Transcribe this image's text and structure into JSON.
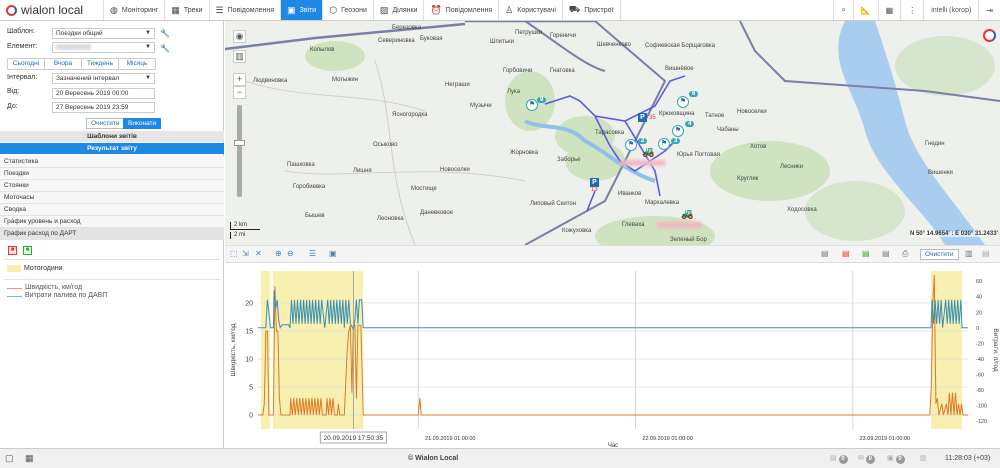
{
  "app": {
    "logo": "wialon local",
    "brand_color": "#1e88e5"
  },
  "nav": {
    "items": [
      {
        "label": "Моніторинг",
        "icon": "globe-icon"
      },
      {
        "label": "Треки",
        "icon": "tracks-icon"
      },
      {
        "label": "Повідомлення",
        "icon": "messages-icon"
      },
      {
        "label": "Звіти",
        "icon": "reports-icon",
        "active": true
      },
      {
        "label": "Геозони",
        "icon": "geofence-icon"
      },
      {
        "label": "Ділянки",
        "icon": "fields-icon"
      },
      {
        "label": "Повідомлення",
        "icon": "notifications-icon"
      },
      {
        "label": "Користувачі",
        "icon": "users-icon"
      },
      {
        "label": "Пристрої",
        "icon": "devices-icon"
      }
    ],
    "user": "intelli (korop)"
  },
  "report_form": {
    "template_label": "Шаблон:",
    "template_value": "Поездки общий",
    "element_label": "Елемент:",
    "element_value": "",
    "periods": [
      "Сьогодні",
      "Вчора",
      "Тиждень",
      "Місяць"
    ],
    "interval_label": "Інтервал:",
    "interval_value": "Зазначений інтервал",
    "from_label": "Від:",
    "from_value": "20 Вересень 2019 00:00",
    "to_label": "До:",
    "to_value": "27 Вересень 2019 23:59",
    "clear_button": "Очистити",
    "execute_button": "Виконати"
  },
  "sections": {
    "templates": "Шаблони звітів",
    "result": "Результат звіту"
  },
  "result_items": [
    "Статистика",
    "Поездки",
    "Стоянки",
    "Моточасы",
    "Сводка",
    "График уровень и расход",
    "График расход по ДАРТ"
  ],
  "legend": {
    "bands": "Моточасы",
    "bands_label": "Мотогодини",
    "speed": "Швидкість, км/год",
    "fuel": "Витрати палива по ДАВП"
  },
  "map": {
    "labels": [
      "Березовка",
      "Севериновка",
      "Буковая",
      "Петрушки",
      "Гореничи",
      "Шевченково",
      "Копылов",
      "Шпитьки",
      "Горбовичи",
      "Гнатовка",
      "Людвиновка",
      "Мотыжин",
      "Неграши",
      "Лука",
      "Музычи",
      "Ясногородка",
      "Осыково",
      "Жорновка",
      "Заборье",
      "Пашковка",
      "Лишня",
      "Новоселки",
      "Горобиевка",
      "Мостище",
      "Липовый Скитон",
      "Бышев",
      "Даневковое",
      "Леоновка",
      "Кожуховка",
      "Софиевская Борщаговка",
      "Вишнёвое",
      "Крюковщина",
      "Тарасовка",
      "Хотов",
      "Новоселки",
      "Чабаны",
      "Гнедин",
      "Вишенки",
      "Лесники",
      "Круглик",
      "Иванков",
      "Мархалевка",
      "Ходосовка",
      "Глеваха",
      "Зеленый Бор",
      "Юрья Погтовая",
      "Татное"
    ],
    "markers": [
      "9",
      "6",
      "4",
      "3",
      "2"
    ],
    "parkings": [
      "13",
      "35"
    ],
    "coordinates": "N 50° 14.9654' : E 030° 31.2433'",
    "scale_km": "2 km",
    "scale_mi": "2 mi"
  },
  "chart_toolbar": {
    "clear_button": "Очистити"
  },
  "chart_data": {
    "type": "line",
    "xlabel": "Час",
    "ylabel_left": "Швидкість, км/год",
    "ylabel_right": "Витрати, л/год",
    "xlim": [
      "20.09 07:18",
      "23.09 13:43"
    ],
    "ylim_left": [
      -2.5,
      25.7
    ],
    "ylim_right": [
      -130,
      73
    ],
    "yticks_left": [
      0,
      5,
      10,
      15,
      20
    ],
    "yticks_right": [
      60,
      40,
      20,
      0,
      -20,
      -40,
      -60,
      -80,
      -100,
      -120
    ],
    "xticks": [
      {
        "t": "21.09 01:00",
        "label": "21.09.2019 01:00:00"
      },
      {
        "t": "22.09 01:00",
        "label": "22.09.2019 01:00:00"
      },
      {
        "t": "23.09 01:00",
        "label": "23.09.2019 01:00:00"
      }
    ],
    "cursor": {
      "t": "20.09 17:50",
      "label": "20.09.2019 17:50:35"
    },
    "grid": true,
    "bands": [
      [
        "20.09 07:38",
        "20.09 08:38"
      ],
      [
        "20.09 08:58",
        "20.09 18:55"
      ],
      [
        "23.09 09:38",
        "23.09 13:03"
      ]
    ],
    "band_color": "#f7f0b0",
    "series": [
      {
        "name": "Швидкість, км/год",
        "axis": "left",
        "color": "#e07b24",
        "points": [
          [
            "20.09 07:18",
            0
          ],
          [
            "20.09 07:50",
            0
          ],
          [
            "20.09 08:00",
            2
          ],
          [
            "20.09 08:10",
            15
          ],
          [
            "20.09 08:20",
            15
          ],
          [
            "20.09 08:30",
            0
          ],
          [
            "20.09 09:00",
            0
          ],
          [
            "20.09 09:10",
            23
          ],
          [
            "20.09 09:20",
            15
          ],
          [
            "20.09 09:30",
            15
          ],
          [
            "20.09 09:40",
            3
          ],
          [
            "20.09 09:50",
            0
          ],
          [
            "20.09 10:50",
            0
          ],
          [
            "20.09 10:55",
            3
          ],
          [
            "20.09 11:05",
            0
          ],
          [
            "20.09 11:15",
            3
          ],
          [
            "20.09 11:25",
            0
          ],
          [
            "20.09 11:35",
            3
          ],
          [
            "20.09 11:45",
            0
          ],
          [
            "20.09 11:55",
            3
          ],
          [
            "20.09 12:05",
            0
          ],
          [
            "20.09 12:15",
            3
          ],
          [
            "20.09 12:25",
            0
          ],
          [
            "20.09 12:35",
            3
          ],
          [
            "20.09 12:45",
            0
          ],
          [
            "20.09 12:55",
            3
          ],
          [
            "20.09 13:05",
            0
          ],
          [
            "20.09 13:15",
            3
          ],
          [
            "20.09 13:25",
            0
          ],
          [
            "20.09 13:35",
            3
          ],
          [
            "20.09 13:45",
            0
          ],
          [
            "20.09 13:55",
            3
          ],
          [
            "20.09 14:05",
            0
          ],
          [
            "20.09 14:15",
            3
          ],
          [
            "20.09 14:25",
            0
          ],
          [
            "20.09 14:50",
            0
          ],
          [
            "20.09 14:55",
            3
          ],
          [
            "20.09 15:05",
            0
          ],
          [
            "20.09 15:15",
            3
          ],
          [
            "20.09 15:25",
            0
          ],
          [
            "20.09 15:35",
            3
          ],
          [
            "20.09 15:45",
            0
          ],
          [
            "20.09 16:05",
            0
          ],
          [
            "20.09 16:10",
            2
          ],
          [
            "20.09 16:20",
            0
          ],
          [
            "20.09 16:50",
            0
          ],
          [
            "20.09 17:00",
            6
          ],
          [
            "20.09 17:10",
            12
          ],
          [
            "20.09 17:20",
            15
          ],
          [
            "20.09 17:30",
            16
          ],
          [
            "20.09 17:40",
            4
          ],
          [
            "20.09 17:50",
            16
          ],
          [
            "20.09 18:00",
            16
          ],
          [
            "20.09 18:10",
            3
          ],
          [
            "20.09 18:20",
            16
          ],
          [
            "20.09 18:40",
            16
          ],
          [
            "20.09 18:55",
            0
          ],
          [
            "21.09 01:00",
            0
          ],
          [
            "21.09 01:10",
            3
          ],
          [
            "21.09 01:20",
            0
          ],
          [
            "23.09 09:30",
            0
          ],
          [
            "23.09 09:40",
            5
          ],
          [
            "23.09 09:50",
            20
          ],
          [
            "23.09 10:00",
            25
          ],
          [
            "23.09 10:10",
            2
          ],
          [
            "23.09 10:20",
            3
          ],
          [
            "23.09 10:30",
            0
          ],
          [
            "23.09 10:50",
            2
          ],
          [
            "23.09 11:00",
            0
          ],
          [
            "23.09 11:20",
            2
          ],
          [
            "23.09 11:30",
            0
          ],
          [
            "23.09 11:40",
            4
          ],
          [
            "23.09 11:50",
            0
          ],
          [
            "23.09 12:00",
            4
          ],
          [
            "23.09 12:10",
            0
          ],
          [
            "23.09 12:20",
            4
          ],
          [
            "23.09 12:30",
            0
          ],
          [
            "23.09 12:40",
            2
          ],
          [
            "23.09 12:50",
            0
          ],
          [
            "23.09 13:00",
            2
          ],
          [
            "23.09 13:10",
            0
          ],
          [
            "23.09 13:43",
            0
          ]
        ]
      },
      {
        "name": "Витрати палива по ДАВП",
        "axis": "right",
        "color": "#3a8fb7",
        "points": [
          [
            "20.09 07:18",
            0
          ],
          [
            "20.09 08:10",
            0
          ],
          [
            "20.09 08:20",
            36
          ],
          [
            "20.09 08:30",
            20
          ],
          [
            "20.09 08:40",
            0
          ],
          [
            "20.09 09:00",
            0
          ],
          [
            "20.09 09:05",
            48
          ],
          [
            "20.09 09:15",
            25
          ],
          [
            "20.09 09:25",
            36
          ],
          [
            "20.09 09:35",
            10
          ],
          [
            "20.09 09:45",
            0
          ],
          [
            "20.09 10:00",
            4
          ],
          [
            "20.09 10:40",
            4
          ],
          [
            "20.09 10:50",
            0
          ],
          [
            "20.09 11:00",
            36
          ],
          [
            "20.09 11:10",
            5
          ],
          [
            "20.09 11:20",
            36
          ],
          [
            "20.09 11:30",
            5
          ],
          [
            "20.09 11:40",
            36
          ],
          [
            "20.09 11:50",
            5
          ],
          [
            "20.09 12:00",
            36
          ],
          [
            "20.09 12:10",
            5
          ],
          [
            "20.09 12:20",
            36
          ],
          [
            "20.09 12:30",
            5
          ],
          [
            "20.09 12:40",
            36
          ],
          [
            "20.09 12:50",
            5
          ],
          [
            "20.09 13:00",
            36
          ],
          [
            "20.09 13:10",
            5
          ],
          [
            "20.09 13:20",
            36
          ],
          [
            "20.09 13:30",
            5
          ],
          [
            "20.09 13:40",
            36
          ],
          [
            "20.09 13:50",
            5
          ],
          [
            "20.09 14:00",
            36
          ],
          [
            "20.09 14:10",
            5
          ],
          [
            "20.09 14:20",
            36
          ],
          [
            "20.09 14:40",
            0
          ],
          [
            "20.09 15:00",
            36
          ],
          [
            "20.09 15:10",
            5
          ],
          [
            "20.09 15:20",
            36
          ],
          [
            "20.09 15:30",
            5
          ],
          [
            "20.09 15:40",
            36
          ],
          [
            "20.09 15:50",
            5
          ],
          [
            "20.09 16:00",
            36
          ],
          [
            "20.09 16:10",
            5
          ],
          [
            "20.09 16:20",
            36
          ],
          [
            "20.09 16:30",
            5
          ],
          [
            "20.09 16:40",
            36
          ],
          [
            "20.09 16:50",
            0
          ],
          [
            "20.09 17:00",
            36
          ],
          [
            "20.09 17:10",
            5
          ],
          [
            "20.09 17:20",
            36
          ],
          [
            "20.09 17:30",
            5
          ],
          [
            "20.09 17:50",
            -2
          ],
          [
            "20.09 18:00",
            10
          ],
          [
            "20.09 18:10",
            36
          ],
          [
            "20.09 18:20",
            5
          ],
          [
            "20.09 18:30",
            36
          ],
          [
            "20.09 18:45",
            36
          ],
          [
            "20.09 18:55",
            0
          ],
          [
            "23.09 09:38",
            0
          ],
          [
            "23.09 09:45",
            36
          ],
          [
            "23.09 09:55",
            5
          ],
          [
            "23.09 10:05",
            36
          ],
          [
            "23.09 10:15",
            5
          ],
          [
            "23.09 10:25",
            36
          ],
          [
            "23.09 10:35",
            5
          ],
          [
            "23.09 10:45",
            36
          ],
          [
            "23.09 10:55",
            0
          ],
          [
            "23.09 11:15",
            36
          ],
          [
            "23.09 11:25",
            5
          ],
          [
            "23.09 11:35",
            36
          ],
          [
            "23.09 11:45",
            5
          ],
          [
            "23.09 11:55",
            36
          ],
          [
            "23.09 12:05",
            5
          ],
          [
            "23.09 12:15",
            36
          ],
          [
            "23.09 12:25",
            5
          ],
          [
            "23.09 12:35",
            36
          ],
          [
            "23.09 12:45",
            5
          ],
          [
            "23.09 12:55",
            36
          ],
          [
            "23.09 13:03",
            0
          ],
          [
            "23.09 13:43",
            0
          ]
        ]
      }
    ]
  },
  "status": {
    "copyright": "© Wialon Local",
    "counters": [
      "0",
      "0",
      "0"
    ],
    "time": "11:28:03 (+03)"
  }
}
